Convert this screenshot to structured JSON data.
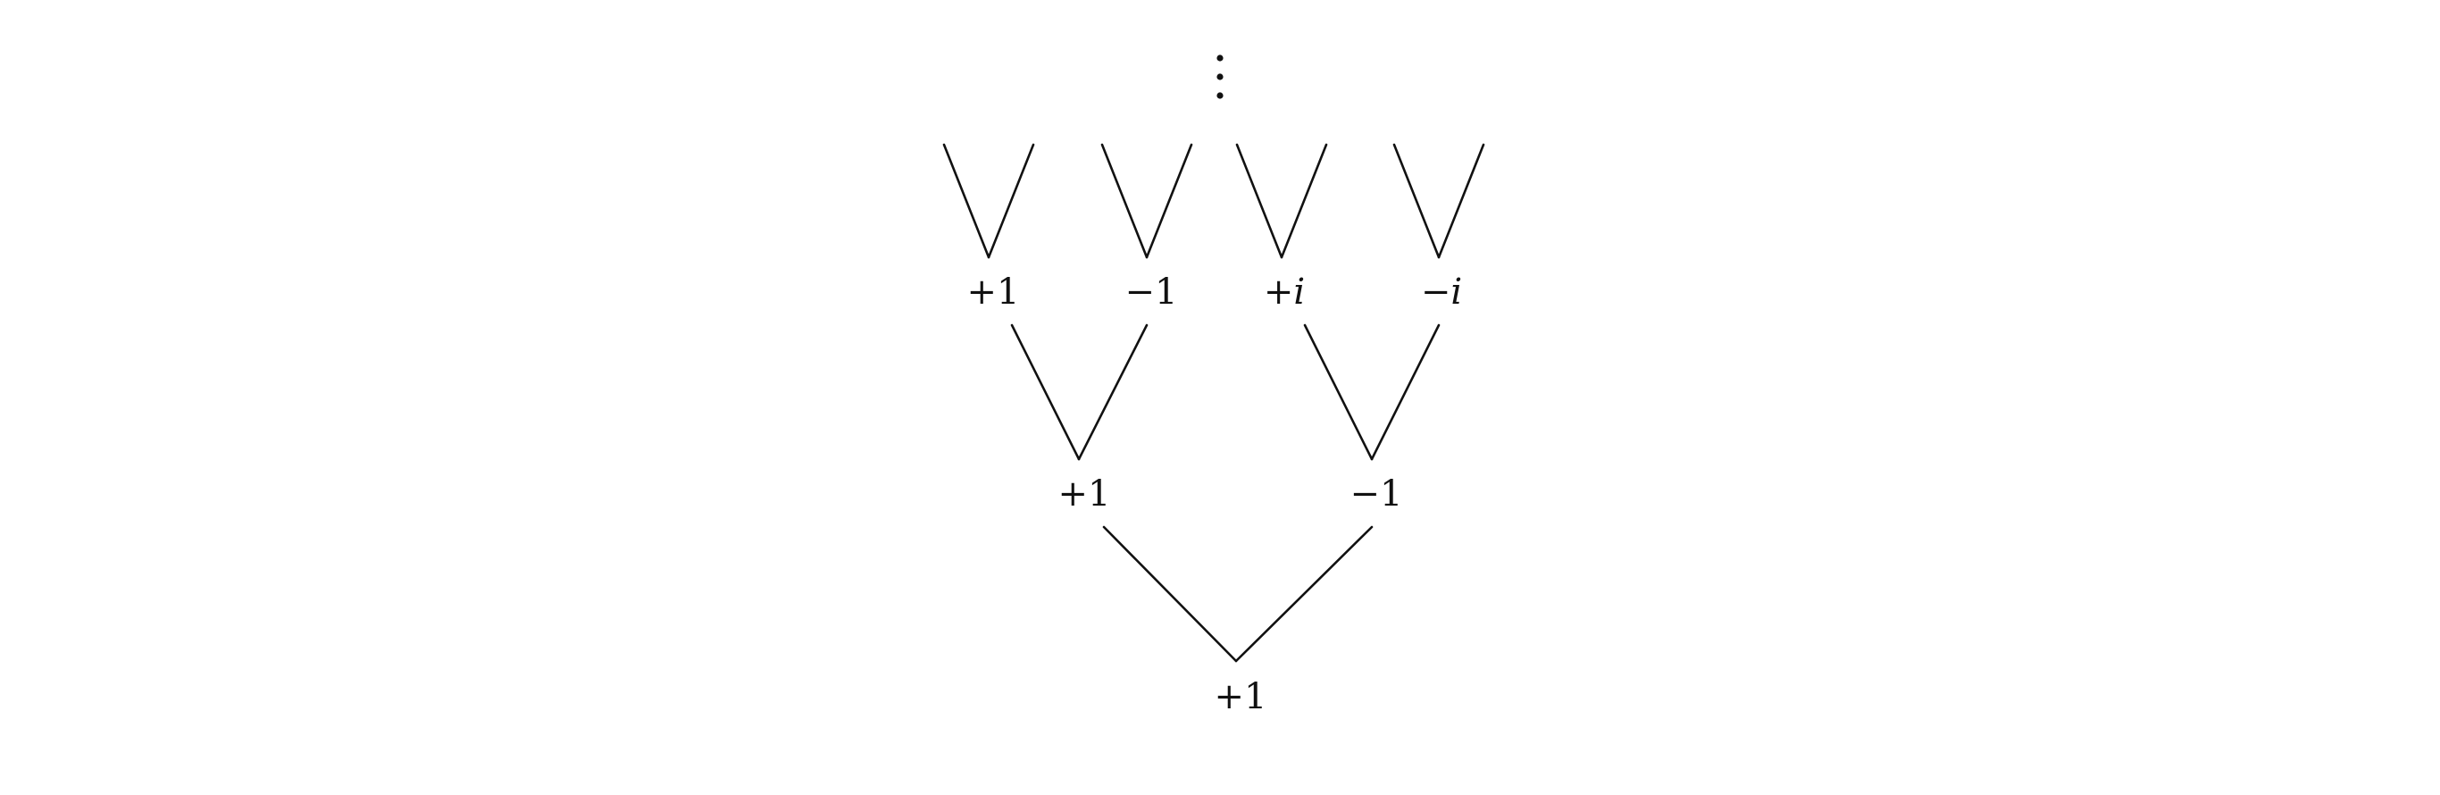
{
  "diagram": {
    "ellipsis": "⋮",
    "nodes": {
      "root": "+1",
      "level1_left": "+1",
      "level1_right": "−1",
      "level2_a": "+1",
      "level2_b": "−1",
      "level2_c": "+i",
      "level2_d": "−i"
    }
  }
}
